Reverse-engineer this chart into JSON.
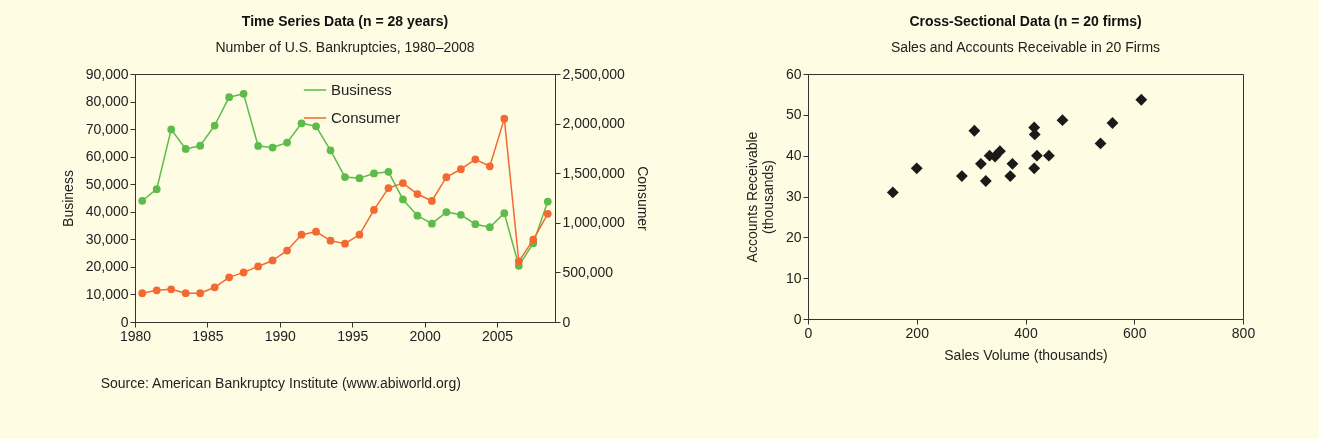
{
  "chart_data": [
    {
      "type": "line",
      "title": "Time Series Data (n = 28 years)",
      "subtitle": "Number of U.S. Bankruptcies, 1980–2008",
      "ylabel": "Business",
      "y2label": "Consumer",
      "x": [
        1980.5,
        1981.5,
        1982.5,
        1983.5,
        1984.5,
        1985.5,
        1986.5,
        1987.5,
        1988.5,
        1989.5,
        1990.5,
        1991.5,
        1992.5,
        1993.5,
        1994.5,
        1995.5,
        1996.5,
        1997.5,
        1998.5,
        1999.5,
        2000.5,
        2001.5,
        2002.5,
        2003.5,
        2004.5,
        2005.5,
        2006.5,
        2007.5,
        2008.5
      ],
      "series": [
        {
          "name": "Business",
          "color": "#5dbb4a",
          "values": [
            44000,
            48200,
            69900,
            62800,
            64000,
            71300,
            81600,
            82800,
            63900,
            63300,
            65100,
            72100,
            71000,
            62300,
            52600,
            52200,
            53900,
            54500,
            44500,
            38600,
            35700,
            39900,
            38900,
            35500,
            34400,
            39500,
            20400,
            28600,
            43700
          ]
        },
        {
          "name": "Consumer",
          "color": "#f26a32",
          "axis": "y2",
          "values": [
            290000,
            320000,
            330000,
            290000,
            290000,
            350000,
            450000,
            500000,
            560000,
            620000,
            720000,
            880000,
            910000,
            820000,
            790000,
            880000,
            1130000,
            1350000,
            1400000,
            1290000,
            1220000,
            1460000,
            1540000,
            1640000,
            1570000,
            2050000,
            610000,
            830000,
            1090000
          ]
        }
      ],
      "xlim": [
        1980,
        2009
      ],
      "xticks": [
        1980,
        1985,
        1990,
        1995,
        2000,
        2005
      ],
      "ylim": [
        0,
        90000
      ],
      "yticks": [
        0,
        {
          "value": 10000,
          "label": "10,000"
        },
        {
          "value": 20000,
          "label": "20,000"
        },
        {
          "value": 30000,
          "label": "30,000"
        },
        {
          "value": 40000,
          "label": "40,000"
        },
        {
          "value": 50000,
          "label": "50,000"
        },
        {
          "value": 60000,
          "label": "60,000"
        },
        {
          "value": 70000,
          "label": "70,000"
        },
        {
          "value": 80000,
          "label": "80,000"
        },
        {
          "value": 90000,
          "label": "90,000"
        }
      ],
      "y2lim": [
        0,
        2500000
      ],
      "y2ticks": [
        0,
        {
          "value": 500000,
          "label": "500,000"
        },
        {
          "value": 1000000,
          "label": "1,000,000"
        },
        {
          "value": 1500000,
          "label": "1,500,000"
        },
        {
          "value": 2000000,
          "label": "2,000,000"
        },
        {
          "value": 2500000,
          "label": "2,500,000"
        }
      ],
      "marker": "circle",
      "line_style": "solid",
      "grid": false,
      "legend": "top right",
      "annotations": [
        "Source: American Bankruptcy Institute (www.abiworld.org)"
      ]
    },
    {
      "type": "scatter",
      "title": "Cross-Sectional Data (n = 20 firms)",
      "subtitle": "Sales and Accounts Receivable in 20 Firms",
      "xlabel": "Sales Volume (thousands)",
      "ylabel": "Accounts Receivable\n(thousands)",
      "x": [
        156,
        200,
        283,
        306,
        318,
        327,
        334,
        344,
        353,
        372,
        376,
        416,
        417,
        416,
        421,
        443,
        468,
        538,
        560,
        613
      ],
      "values": [
        31.0,
        36.9,
        35.0,
        46.1,
        38.0,
        33.8,
        40.0,
        39.8,
        41.1,
        35.0,
        38.0,
        46.9,
        45.2,
        36.9,
        40.0,
        40.0,
        48.7,
        43.0,
        48.0,
        53.7
      ],
      "color": "#1a1a1a",
      "marker": "diamond",
      "grid": false,
      "xlim": [
        0,
        800
      ],
      "xticks": [
        0,
        200,
        400,
        600,
        800
      ],
      "ylim": [
        0,
        60
      ],
      "yticks": [
        0,
        10,
        20,
        30,
        40,
        50,
        60
      ]
    }
  ]
}
